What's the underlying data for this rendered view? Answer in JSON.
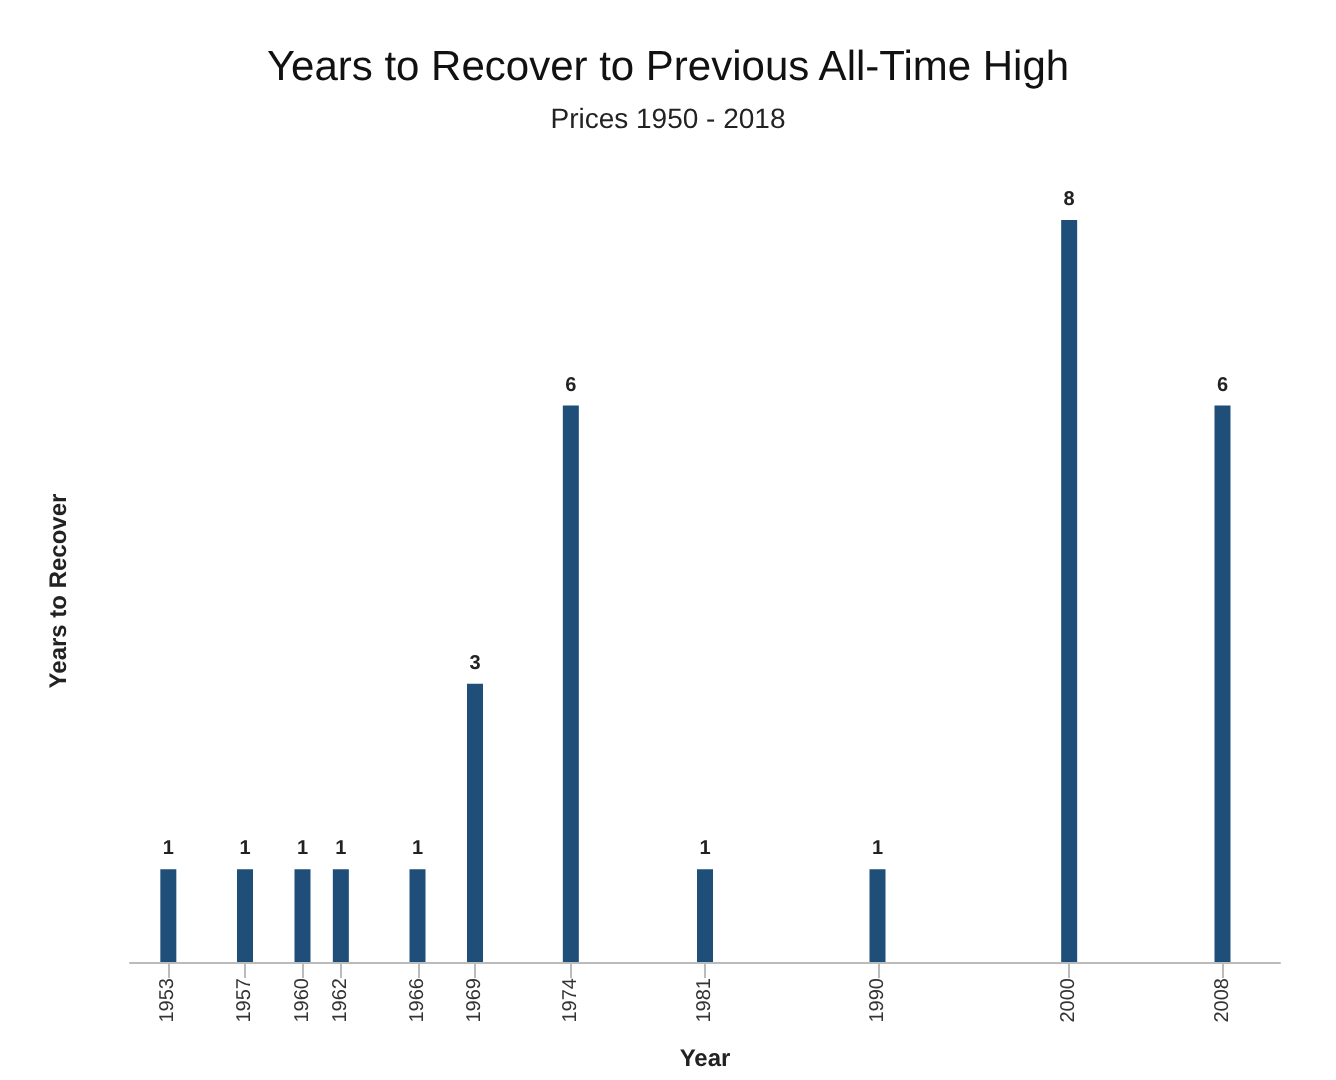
{
  "chart_data": {
    "type": "bar",
    "title": "Years to Recover to Previous All-Time High",
    "subtitle": "Prices 1950 - 2018",
    "xlabel": "Year",
    "ylabel": "Years to Recover",
    "x": [
      1953,
      1957,
      1960,
      1962,
      1966,
      1969,
      1974,
      1981,
      1990,
      2000,
      2008
    ],
    "values": [
      1,
      1,
      1,
      1,
      1,
      3,
      6,
      1,
      1,
      8,
      6
    ],
    "color": "#1f4e79",
    "xlim": [
      1951,
      2011
    ],
    "xticks": [
      1953,
      1957,
      1960,
      1962,
      1966,
      1969,
      1974,
      1981,
      1990,
      2000,
      2008
    ],
    "tick_labels": "x",
    "data_labels": true
  }
}
